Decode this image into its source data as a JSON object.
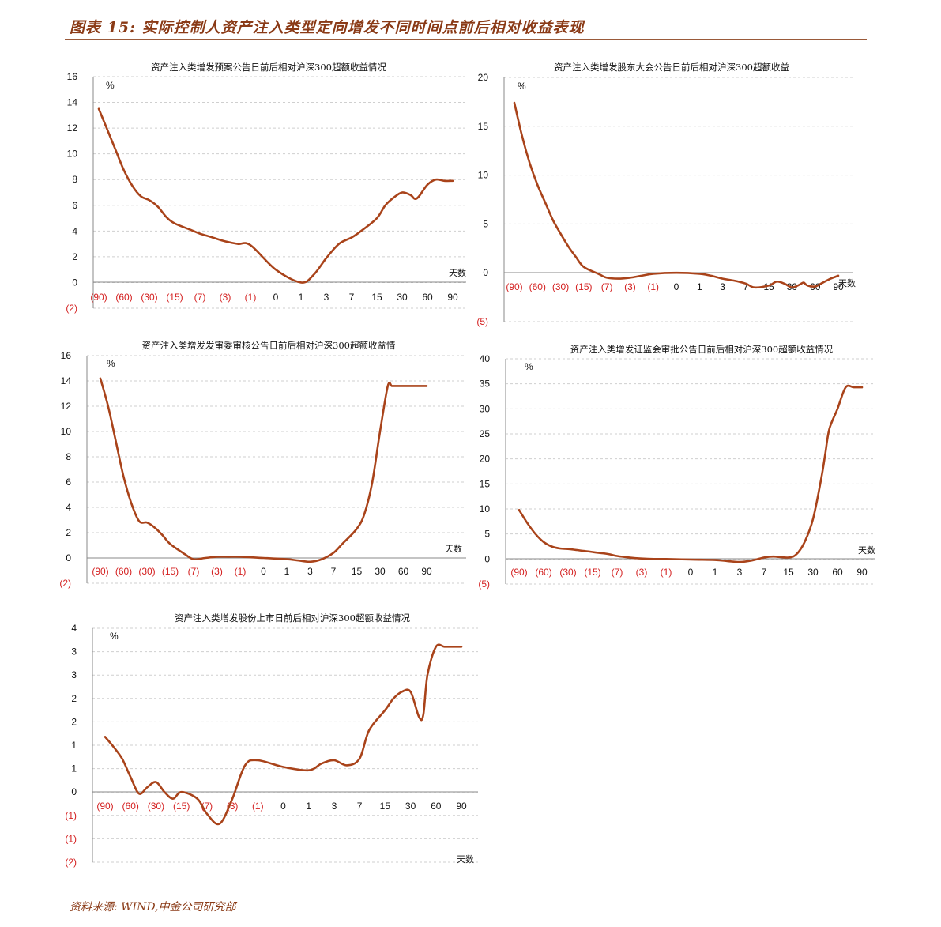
{
  "figure": {
    "title": "图表 15:  实际控制人资产注入类型定向增发不同时间点前后相对收益表现",
    "source": "资料来源:   WIND,中金公司研究部"
  },
  "colors": {
    "line": "#a9431a",
    "accent": "#8a3a16",
    "negative_label": "#d42020"
  },
  "chart_data": [
    {
      "type": "line",
      "title": "资产注入类增发预案公告日前后相对沪深300超额收益情况",
      "ylabel": "%",
      "xlabel": "天数",
      "ylim": [
        -2,
        16
      ],
      "yticks": [
        "16",
        "14",
        "12",
        "10",
        "8",
        "6",
        "4",
        "2",
        "0",
        "(2)"
      ],
      "xticks": [
        "(90)",
        "(60)",
        "(30)",
        "(15)",
        "(7)",
        "(3)",
        "(1)",
        "0",
        "1",
        "3",
        "7",
        "15",
        "30",
        "60",
        "90"
      ],
      "grid": true,
      "x": [
        -90,
        -80,
        -70,
        -60,
        -50,
        -40,
        -30,
        -25,
        -20,
        -15,
        -10,
        -7,
        -5,
        -3,
        -2,
        -1,
        0,
        1,
        2,
        3,
        5,
        7,
        10,
        15,
        20,
        25,
        30,
        40,
        45,
        50,
        60,
        70,
        80,
        90
      ],
      "y": [
        13.5,
        11.9,
        10.3,
        8.7,
        7.5,
        6.7,
        6.4,
        5.9,
        5.1,
        4.6,
        4.1,
        3.8,
        3.5,
        3.2,
        3.0,
        2.9,
        1.0,
        0.0,
        0.6,
        1.9,
        3.0,
        3.5,
        4.0,
        5.0,
        6.0,
        6.6,
        7.0,
        6.8,
        6.5,
        6.7,
        7.6,
        8.0,
        7.9,
        7.9
      ]
    },
    {
      "type": "line",
      "title": "资产注入类增发股东大会公告日前后相对沪深300超额收益",
      "ylabel": "%",
      "xlabel": "天数",
      "ylim": [
        -5,
        20
      ],
      "yticks": [
        "20",
        "15",
        "10",
        "5",
        "0",
        "(5)"
      ],
      "xticks": [
        "(90)",
        "(60)",
        "(30)",
        "(15)",
        "(7)",
        "(3)",
        "(1)",
        "0",
        "1",
        "3",
        "7",
        "15",
        "30",
        "60",
        "90"
      ],
      "grid": true,
      "x": [
        -90,
        -80,
        -70,
        -60,
        -50,
        -40,
        -30,
        -25,
        -20,
        -15,
        -10,
        -7,
        -5,
        -3,
        -2,
        -1,
        0,
        1,
        2,
        3,
        5,
        7,
        10,
        15,
        20,
        25,
        30,
        40,
        45,
        50,
        60,
        70,
        80,
        90
      ],
      "y": [
        17.4,
        14.0,
        11.2,
        9.0,
        7.2,
        5.4,
        4.0,
        2.7,
        1.6,
        0.6,
        -0.1,
        -0.5,
        -0.6,
        -0.5,
        -0.3,
        -0.1,
        0.0,
        -0.1,
        -0.3,
        -0.6,
        -0.8,
        -1.1,
        -1.5,
        -1.3,
        -0.9,
        -1.1,
        -1.5,
        -1.2,
        -1.0,
        -1.3,
        -1.4,
        -1.0,
        -0.6,
        -0.3
      ]
    },
    {
      "type": "line",
      "title": "资产注入类增发发审委审核公告日前后相对沪深300超额收益情",
      "ylabel": "%",
      "xlabel": "天数",
      "ylim": [
        -2,
        16
      ],
      "yticks": [
        "16",
        "14",
        "12",
        "10",
        "8",
        "6",
        "4",
        "2",
        "0",
        "(2)"
      ],
      "xticks": [
        "(90)",
        "(60)",
        "(30)",
        "(15)",
        "(7)",
        "(3)",
        "(1)",
        "0",
        "1",
        "3",
        "7",
        "15",
        "30",
        "60",
        "90"
      ],
      "grid": true,
      "x": [
        -90,
        -80,
        -70,
        -60,
        -50,
        -40,
        -30,
        -25,
        -20,
        -15,
        -10,
        -7,
        -5,
        -3,
        -2,
        -1,
        0,
        1,
        2,
        3,
        5,
        7,
        10,
        15,
        20,
        25,
        30,
        40,
        45,
        50,
        60,
        70,
        80,
        90
      ],
      "y": [
        14.2,
        12.0,
        9.2,
        6.4,
        4.3,
        2.9,
        2.8,
        2.4,
        1.8,
        1.1,
        0.3,
        -0.1,
        0.0,
        0.1,
        0.1,
        0.1,
        0.0,
        -0.1,
        -0.2,
        -0.3,
        -0.1,
        0.4,
        1.1,
        2.3,
        3.5,
        6.0,
        10.0,
        13.6,
        13.6,
        13.6,
        13.6,
        13.6,
        13.6,
        13.6
      ]
    },
    {
      "type": "line",
      "title": "资产注入类增发证监会审批公告日前后相对沪深300超额收益情况",
      "ylabel": "%",
      "xlabel": "天数",
      "ylim": [
        -5,
        40
      ],
      "yticks": [
        "40",
        "35",
        "30",
        "25",
        "20",
        "15",
        "10",
        "5",
        "0",
        "(5)"
      ],
      "xticks": [
        "(90)",
        "(60)",
        "(30)",
        "(15)",
        "(7)",
        "(3)",
        "(1)",
        "0",
        "1",
        "3",
        "7",
        "15",
        "30",
        "60",
        "90"
      ],
      "grid": true,
      "x": [
        -90,
        -80,
        -70,
        -60,
        -50,
        -40,
        -30,
        -25,
        -20,
        -15,
        -10,
        -7,
        -5,
        -3,
        -2,
        -1,
        0,
        1,
        2,
        3,
        5,
        7,
        10,
        15,
        20,
        25,
        30,
        40,
        45,
        50,
        60,
        70,
        80,
        90
      ],
      "y": [
        9.8,
        7.2,
        5.0,
        3.4,
        2.5,
        2.1,
        2.0,
        1.8,
        1.6,
        1.4,
        1.0,
        0.6,
        0.3,
        0.1,
        0.0,
        0.0,
        -0.1,
        -0.2,
        -0.4,
        -0.6,
        -0.3,
        0.3,
        0.5,
        0.3,
        1.0,
        3.5,
        8.0,
        16.0,
        21.0,
        26.0,
        30.0,
        34.3,
        34.3,
        34.3
      ]
    },
    {
      "type": "line",
      "title": "资产注入类增发股份上市日前后相对沪深300超额收益情况",
      "ylabel": "%",
      "xlabel": "天数",
      "ylim": [
        -3,
        4
      ],
      "yticks": [
        "4",
        "3",
        "3",
        "2",
        "2",
        "1",
        "1",
        "0",
        "(1)",
        "(1)",
        "(2)"
      ],
      "xticks": [
        "(90)",
        "(60)",
        "(30)",
        "(15)",
        "(7)",
        "(3)",
        "(1)",
        "0",
        "1",
        "3",
        "7",
        "15",
        "30",
        "60",
        "90"
      ],
      "grid": true,
      "x": [
        -90,
        -80,
        -70,
        -60,
        -50,
        -40,
        -30,
        -25,
        -20,
        -15,
        -10,
        -7,
        -5,
        -3,
        -2,
        -1,
        0,
        1,
        2,
        3,
        5,
        7,
        10,
        15,
        20,
        25,
        30,
        40,
        45,
        50,
        60,
        70,
        80,
        90
      ],
      "y": [
        0.75,
        0.45,
        0.1,
        -0.45,
        -0.95,
        -0.75,
        -0.6,
        -0.9,
        -1.1,
        -0.9,
        -1.1,
        -1.55,
        -1.85,
        -1.1,
        -0.1,
        0.05,
        -0.15,
        -0.25,
        -0.05,
        0.05,
        -0.1,
        0.1,
        0.95,
        1.55,
        1.9,
        2.1,
        2.1,
        1.35,
        1.4,
        2.6,
        3.45,
        3.45,
        3.45,
        3.45
      ]
    }
  ]
}
